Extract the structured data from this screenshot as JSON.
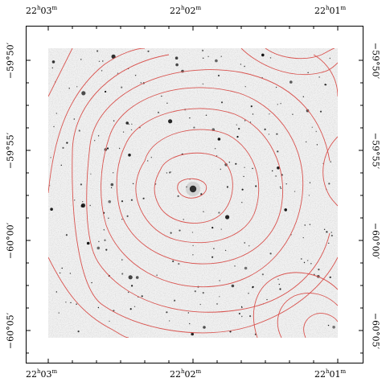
{
  "ra_labels_top": [
    {
      "h": "22",
      "m": "03"
    },
    {
      "h": "22",
      "m": "02"
    },
    {
      "h": "22",
      "m": "01"
    }
  ],
  "ra_labels_bottom": [
    {
      "h": "22",
      "m": "03"
    },
    {
      "h": "22",
      "m": "02"
    },
    {
      "h": "22",
      "m": "01"
    }
  ],
  "dec_labels_left": [
    "−59°50′",
    "−59°55′",
    "−60°00′",
    "−60°05′"
  ],
  "dec_labels_right": [
    "−59°50′",
    "−59°55′",
    "−60°00′",
    "−60°05′"
  ],
  "colors": {
    "contour": "#d9534f",
    "frame": "#000000",
    "sky": "#efefef"
  }
}
